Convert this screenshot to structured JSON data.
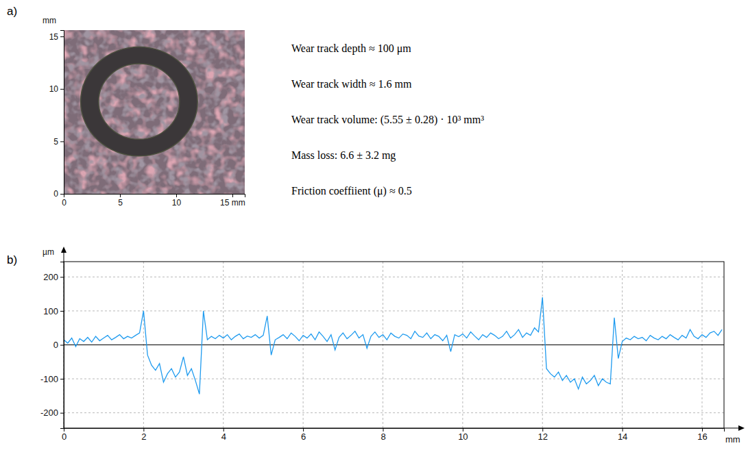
{
  "chart_data": [
    {
      "type": "image",
      "title": "a)",
      "y_label": "mm",
      "xlim": [
        0,
        16.1
      ],
      "ylim": [
        0,
        15.6
      ],
      "xticks": [
        0,
        5,
        10,
        {
          "value": 15,
          "label": "15 mm"
        }
      ],
      "yticks": [
        0,
        5,
        10,
        15
      ],
      "wear_track": {
        "x": 6.7,
        "y": 8.8,
        "outer_radius": 5.2,
        "inner_radius": 3.6
      },
      "annotations": [
        "Wear track depth ≈ 100 μm",
        "Wear track width ≈ 1.6 mm",
        "Wear track volume: (5.55 ± 0.28) · 10³ mm³",
        "Mass loss: 6.6 ± 3.2 mg",
        "Friction coeffiient (μ) ≈ 0.5"
      ]
    },
    {
      "type": "line",
      "title": "b)",
      "x_label": "mm",
      "y_label": "µm",
      "xlim": [
        0,
        16.55
      ],
      "ylim": [
        -245,
        245
      ],
      "xticks": [
        0,
        2,
        4,
        6,
        8,
        10,
        12,
        14,
        16
      ],
      "yticks": [
        -200,
        -100,
        0,
        100,
        200
      ],
      "grid": true,
      "color": "#1f9bef",
      "x": [
        0.0,
        0.1,
        0.2,
        0.3,
        0.4,
        0.5,
        0.6,
        0.7,
        0.8,
        0.9,
        1.0,
        1.1,
        1.2,
        1.3,
        1.4,
        1.5,
        1.6,
        1.7,
        1.8,
        1.9,
        2.0,
        2.1,
        2.2,
        2.3,
        2.4,
        2.5,
        2.6,
        2.7,
        2.8,
        2.9,
        3.0,
        3.1,
        3.2,
        3.3,
        3.4,
        3.5,
        3.6,
        3.7,
        3.8,
        3.9,
        4.0,
        4.1,
        4.2,
        4.3,
        4.4,
        4.5,
        4.6,
        4.7,
        4.8,
        4.9,
        5.0,
        5.1,
        5.2,
        5.3,
        5.4,
        5.5,
        5.6,
        5.7,
        5.8,
        5.9,
        6.0,
        6.1,
        6.2,
        6.3,
        6.4,
        6.5,
        6.6,
        6.7,
        6.8,
        6.9,
        7.0,
        7.1,
        7.2,
        7.3,
        7.4,
        7.5,
        7.6,
        7.7,
        7.8,
        7.9,
        8.0,
        8.1,
        8.2,
        8.3,
        8.4,
        8.5,
        8.6,
        8.7,
        8.8,
        8.9,
        9.0,
        9.1,
        9.2,
        9.3,
        9.4,
        9.5,
        9.6,
        9.7,
        9.8,
        9.9,
        10.0,
        10.1,
        10.2,
        10.3,
        10.4,
        10.5,
        10.6,
        10.7,
        10.8,
        10.9,
        11.0,
        11.1,
        11.2,
        11.3,
        11.4,
        11.5,
        11.6,
        11.7,
        11.8,
        11.9,
        12.0,
        12.1,
        12.2,
        12.3,
        12.4,
        12.5,
        12.6,
        12.7,
        12.8,
        12.9,
        13.0,
        13.1,
        13.2,
        13.3,
        13.4,
        13.5,
        13.6,
        13.7,
        13.8,
        13.9,
        14.0,
        14.1,
        14.2,
        14.3,
        14.4,
        14.5,
        14.6,
        14.7,
        14.8,
        14.9,
        15.0,
        15.1,
        15.2,
        15.3,
        15.4,
        15.5,
        15.6,
        15.7,
        15.8,
        15.9,
        16.0,
        16.1,
        16.2,
        16.3,
        16.4,
        16.5
      ],
      "values": [
        15,
        5,
        20,
        -5,
        18,
        10,
        22,
        8,
        25,
        12,
        20,
        28,
        15,
        22,
        30,
        18,
        25,
        20,
        28,
        35,
        100,
        -30,
        -60,
        -75,
        -55,
        -110,
        -85,
        -70,
        -95,
        -80,
        -35,
        -90,
        -70,
        -105,
        -145,
        100,
        15,
        25,
        18,
        28,
        20,
        30,
        15,
        25,
        32,
        18,
        26,
        22,
        30,
        20,
        28,
        85,
        -30,
        15,
        22,
        30,
        18,
        35,
        25,
        12,
        28,
        20,
        32,
        15,
        38,
        25,
        10,
        30,
        -15,
        22,
        35,
        18,
        28,
        40,
        20,
        30,
        -10,
        25,
        38,
        22,
        30,
        15,
        35,
        25,
        20,
        32,
        28,
        18,
        40,
        26,
        22,
        35,
        18,
        30,
        25,
        12,
        28,
        -20,
        30,
        24,
        32,
        20,
        38,
        26,
        15,
        30,
        22,
        35,
        28,
        18,
        25,
        40,
        20,
        30,
        45,
        22,
        35,
        28,
        50,
        38,
        140,
        -70,
        -85,
        -95,
        -80,
        -105,
        -90,
        -110,
        -100,
        -130,
        -95,
        -115,
        -105,
        -90,
        -120,
        -100,
        -110,
        -115,
        80,
        -40,
        10,
        20,
        15,
        25,
        18,
        22,
        12,
        28,
        20,
        15,
        25,
        18,
        30,
        22,
        15,
        28,
        20,
        45,
        25,
        18,
        30,
        22,
        35,
        40,
        28,
        45
      ]
    }
  ]
}
